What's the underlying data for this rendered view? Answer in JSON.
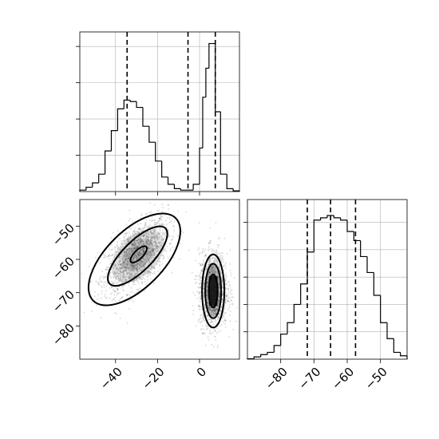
{
  "chart_data": [
    {
      "panel": "top-left",
      "type": "histogram",
      "variable_index": 0,
      "xlim": [
        -57,
        19
      ],
      "ylim": [
        0,
        0.11
      ],
      "xticks": [
        -40,
        -20,
        0
      ],
      "yticks_unlabeled": [
        0.025,
        0.05,
        0.075,
        0.1
      ],
      "grid": true,
      "bin_edges": [
        -57,
        -54,
        -51,
        -48,
        -45,
        -42,
        -39,
        -36,
        -33,
        -30,
        -27,
        -24,
        -21,
        -18,
        -15,
        -12,
        -9,
        -6,
        -3,
        0,
        1.5,
        3,
        4.5,
        6,
        7.5,
        10,
        13,
        16,
        19
      ],
      "counts": [
        0.001,
        0.003,
        0.006,
        0.012,
        0.028,
        0.042,
        0.057,
        0.063,
        0.062,
        0.058,
        0.045,
        0.034,
        0.021,
        0.01,
        0.005,
        0.002,
        0.001,
        0.001,
        0.005,
        0.03,
        0.065,
        0.085,
        0.102,
        0.102,
        0.055,
        0.012,
        0.002,
        0.0005
      ],
      "quantile_lines": [
        -34.5,
        -5.5,
        7.5
      ]
    },
    {
      "panel": "bottom-left",
      "type": "scatter",
      "xlim": [
        -57,
        19
      ],
      "ylim": [
        -90,
        -42
      ],
      "xticks": [
        -40,
        -20,
        0
      ],
      "yticks": [
        -50,
        -60,
        -70,
        -80
      ],
      "grid": false,
      "clusters": [
        {
          "center": [
            -30,
            -59
          ],
          "sigma": [
            7.5,
            5.5
          ],
          "correlation": 0.55,
          "weight": 0.52
        },
        {
          "center": [
            6.5,
            -69
          ],
          "sigma": [
            3.4,
            5.6
          ],
          "correlation": 0.0,
          "weight": 0.48
        }
      ],
      "contours": [
        {
          "center": [
            -29,
            -58.5
          ],
          "rx": 4.0,
          "ry": 1.6,
          "angle_deg": 45
        },
        {
          "center": [
            -29.5,
            -59
          ],
          "rx": 14.5,
          "ry": 5.5,
          "angle_deg": 45
        },
        {
          "center": [
            -31,
            -60
          ],
          "rx": 21.5,
          "ry": 10.5,
          "angle_deg": 45
        },
        {
          "center": [
            6.5,
            -69.5
          ],
          "rx": 2.1,
          "ry": 5.0,
          "angle_deg": 0
        },
        {
          "center": [
            6.5,
            -69.5
          ],
          "rx": 3.8,
          "ry": 8.2,
          "angle_deg": 0
        },
        {
          "center": [
            6.5,
            -69.5
          ],
          "rx": 5.3,
          "ry": 11.0,
          "angle_deg": 0
        }
      ]
    },
    {
      "panel": "bottom-right",
      "type": "histogram",
      "variable_index": 1,
      "xlim": [
        -90,
        -42
      ],
      "ylim": [
        0,
        0.07
      ],
      "xticks": [
        -80,
        -70,
        -60,
        -50
      ],
      "yticks_unlabeled": [
        0.012,
        0.024,
        0.036,
        0.048,
        0.06
      ],
      "grid": true,
      "bin_edges": [
        -90,
        -88,
        -86,
        -84,
        -82,
        -80,
        -78,
        -76,
        -74,
        -72,
        -70,
        -68,
        -66,
        -64,
        -62,
        -60,
        -58,
        -56,
        -54,
        -52,
        -50,
        -48,
        -46,
        -44,
        -42
      ],
      "counts": [
        0.0002,
        0.001,
        0.002,
        0.003,
        0.006,
        0.011,
        0.016,
        0.024,
        0.033,
        0.047,
        0.061,
        0.062,
        0.063,
        0.062,
        0.061,
        0.056,
        0.052,
        0.045,
        0.038,
        0.028,
        0.016,
        0.009,
        0.003,
        0.0015
      ],
      "quantile_lines": [
        -72,
        -65,
        -57.5
      ]
    }
  ]
}
